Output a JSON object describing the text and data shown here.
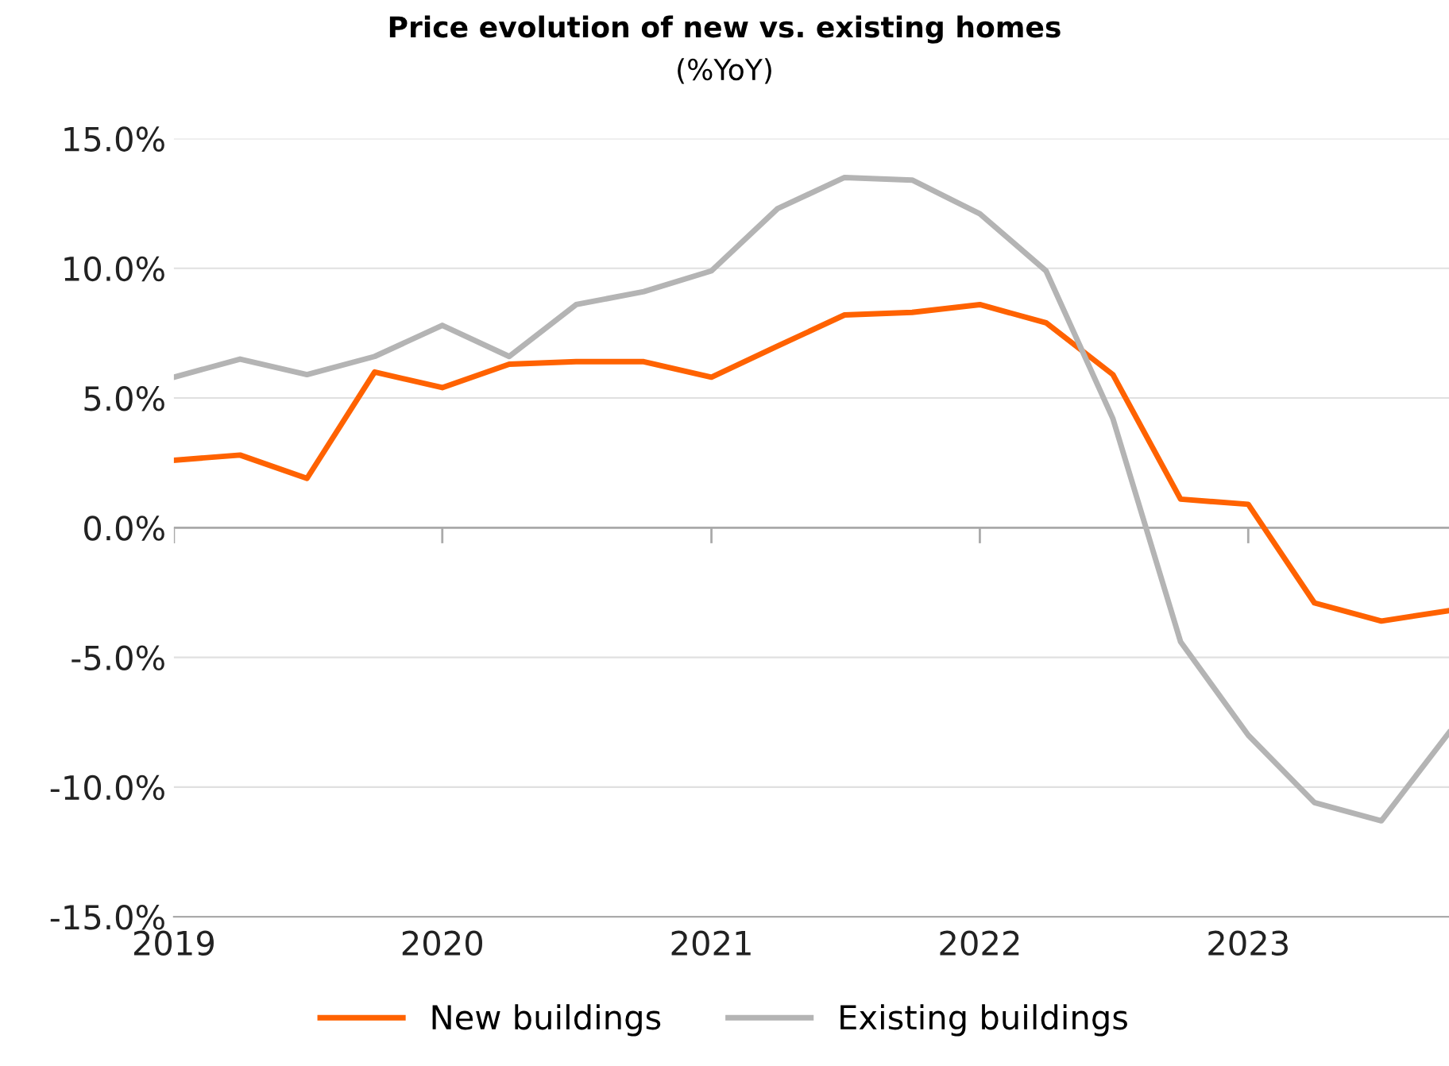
{
  "chart_data": {
    "type": "line",
    "title": "Price evolution of new vs. existing homes",
    "subtitle": "(%YoY)",
    "x": [
      "2019-01",
      "2019-04",
      "2019-07",
      "2019-10",
      "2020-01",
      "2020-04",
      "2020-07",
      "2020-10",
      "2021-01",
      "2021-04",
      "2021-07",
      "2021-10",
      "2022-01",
      "2022-04",
      "2022-07",
      "2022-10",
      "2023-01",
      "2023-04",
      "2023-07",
      "2023-10"
    ],
    "series": [
      {
        "name": "New buildings",
        "color": "#ff6200",
        "values": [
          2.6,
          2.8,
          1.9,
          6.0,
          5.4,
          6.3,
          6.4,
          6.4,
          5.8,
          7.0,
          8.2,
          8.3,
          8.6,
          7.9,
          5.9,
          1.1,
          0.9,
          -2.9,
          -3.6,
          -3.2
        ]
      },
      {
        "name": "Existing buildings",
        "color": "#b4b4b4",
        "values": [
          5.8,
          6.5,
          5.9,
          6.6,
          7.8,
          6.6,
          8.6,
          9.1,
          9.9,
          12.3,
          13.5,
          13.4,
          12.1,
          9.9,
          4.2,
          -4.4,
          -8.0,
          -10.6,
          -11.3,
          -7.9
        ]
      }
    ],
    "xlim": [
      "2019-01",
      "2023-10"
    ],
    "xticks": [
      "2019",
      "2020",
      "2021",
      "2022",
      "2023"
    ],
    "ylim": [
      -15,
      15
    ],
    "yticks": [
      {
        "value": -15,
        "label": "-15.0%"
      },
      {
        "value": -10,
        "label": "-10.0%"
      },
      {
        "value": -5,
        "label": "-5.0%"
      },
      {
        "value": 0,
        "label": "0.0%"
      },
      {
        "value": 5,
        "label": "5.0%"
      },
      {
        "value": 10,
        "label": "10.0%"
      },
      {
        "value": 15,
        "label": "15.0%"
      }
    ],
    "grid": "y",
    "legend": "bottom",
    "marker": "none",
    "line_style": "solid"
  }
}
